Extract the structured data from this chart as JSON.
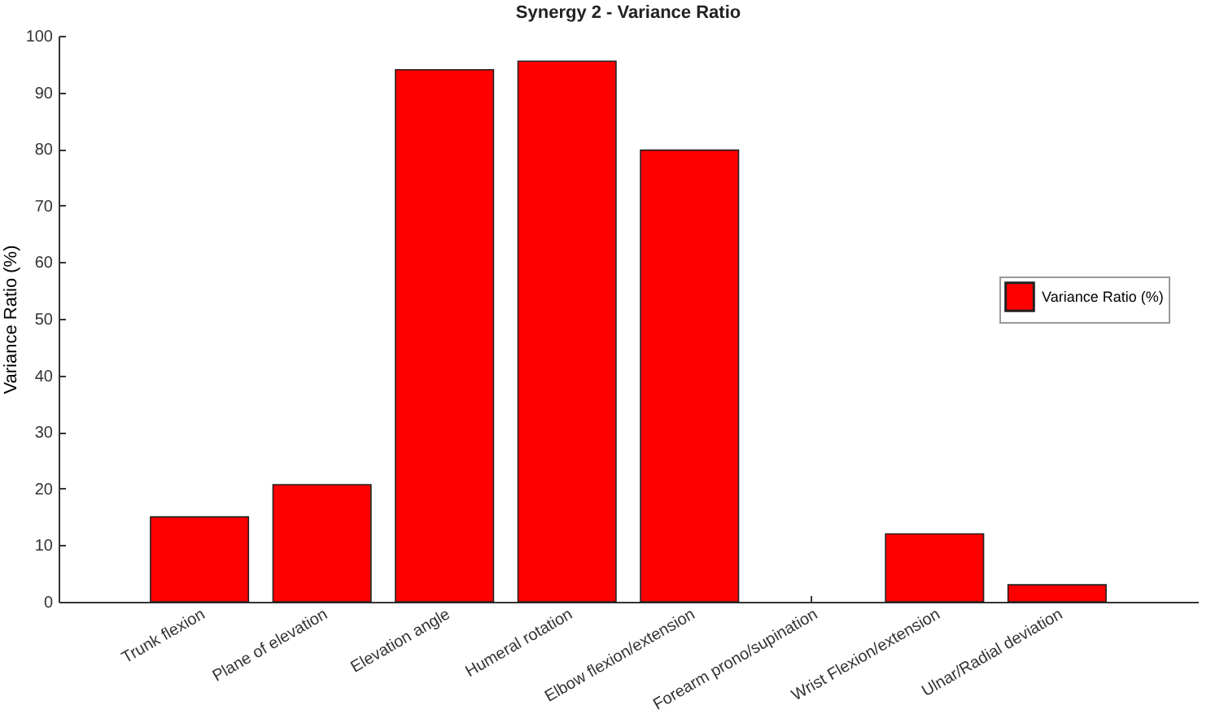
{
  "chart_data": {
    "type": "bar",
    "title": "Synergy 2 - Variance Ratio",
    "ylabel": "Variance Ratio (%)",
    "categories": [
      "Trunk flexion",
      "Plane of elevation",
      "Elevation angle",
      "Humeral rotation",
      "Elbow flexion/extension",
      "Forearm prono/supination",
      "Wrist Flexion/extension",
      "Ulnar/Radial deviation"
    ],
    "series": [
      {
        "name": "Variance Ratio (%)",
        "color": "#ff0000",
        "values": [
          15,
          20.7,
          94,
          95.5,
          79.8,
          null,
          12,
          3
        ]
      }
    ],
    "ylim": [
      0,
      100
    ],
    "yticks": [
      0,
      10,
      20,
      30,
      40,
      50,
      60,
      70,
      80,
      90,
      100
    ],
    "grid": false,
    "legend": "right"
  }
}
